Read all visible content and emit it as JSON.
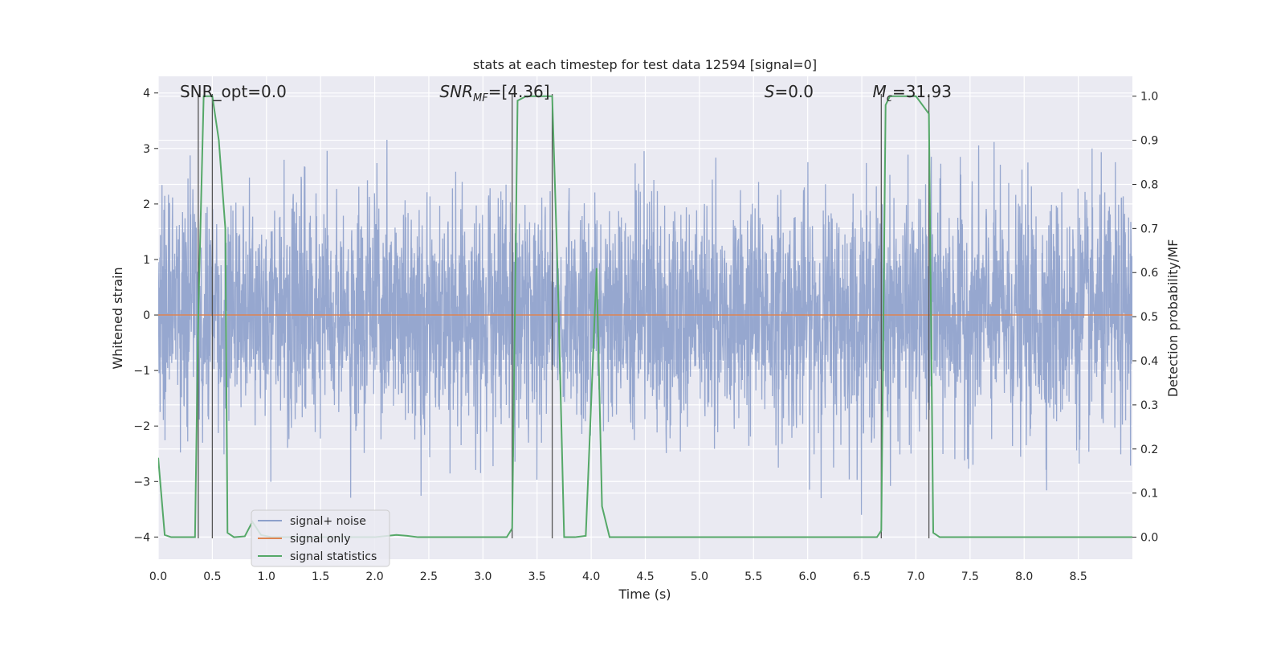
{
  "chart_data": {
    "type": "line",
    "title": "stats at each timestep for test data 12594 [signal=0]",
    "xlabel": "Time (s)",
    "ylabel": "Whitened strain",
    "y2label": "Detection probability/MF",
    "xlim": [
      0.0,
      9.0
    ],
    "ylim": [
      -4.4,
      4.3
    ],
    "y2lim": [
      -0.05,
      1.045
    ],
    "xticks": [
      "0.0",
      "0.5",
      "1.0",
      "1.5",
      "2.0",
      "2.5",
      "3.0",
      "3.5",
      "4.0",
      "4.5",
      "5.0",
      "5.5",
      "6.0",
      "6.5",
      "7.0",
      "7.5",
      "8.0",
      "8.5"
    ],
    "yticks": [
      "4",
      "3",
      "2",
      "1",
      "0",
      "−1",
      "−2",
      "−3",
      "−4"
    ],
    "y2ticks": [
      "1.0",
      "0.9",
      "0.8",
      "0.7",
      "0.6",
      "0.5",
      "0.4",
      "0.3",
      "0.2",
      "0.1",
      "0.0"
    ],
    "grid": true,
    "background": "#eaeaf2",
    "annotations": [
      {
        "text": "SNR_opt=0.0",
        "x": 0.2
      },
      {
        "text": "SNR",
        "sub": "MF",
        "suffix": "=[4.36]",
        "x": 2.6,
        "italic": true
      },
      {
        "text": "S",
        "suffix": "=0.0",
        "x": 5.6,
        "italic": true
      },
      {
        "text": "M",
        "sub": "c",
        "suffix": "=31.93",
        "x": 6.6,
        "italic": true
      }
    ],
    "vertical_lines_x": [
      0.37,
      0.5,
      3.27,
      3.64,
      6.68,
      7.12
    ],
    "series": [
      {
        "name": "signal+ noise",
        "color": "#8da0cb",
        "kind": "noise",
        "sigma": 1.0,
        "axis": "left"
      },
      {
        "name": "signal only",
        "color": "#dd8452",
        "x": [
          0.0,
          9.0
        ],
        "values": [
          0.0,
          0.0
        ],
        "axis": "left"
      },
      {
        "name": "signal statistics",
        "color": "#55a868",
        "axis": "right",
        "x": [
          0.0,
          0.06,
          0.12,
          0.3,
          0.34,
          0.37,
          0.42,
          0.5,
          0.56,
          0.62,
          0.64,
          0.7,
          0.8,
          0.87,
          0.95,
          1.05,
          2.0,
          2.2,
          2.3,
          2.4,
          3.22,
          3.27,
          3.32,
          3.4,
          3.64,
          3.69,
          3.75,
          3.85,
          3.95,
          4.05,
          4.1,
          4.17,
          4.25,
          6.3,
          6.5,
          6.64,
          6.68,
          6.72,
          6.76,
          7.0,
          7.12,
          7.16,
          7.22,
          7.3,
          9.0
        ],
        "values": [
          0.18,
          0.005,
          0.0,
          0.0,
          0.0,
          0.5,
          1.0,
          1.0,
          0.9,
          0.7,
          0.01,
          0.0,
          0.002,
          0.035,
          0.005,
          0.0,
          0.0,
          0.005,
          0.003,
          0.0,
          0.0,
          0.02,
          0.99,
          1.0,
          1.0,
          0.6,
          0.0,
          0.0,
          0.003,
          0.61,
          0.07,
          0.0,
          0.0,
          0.0,
          0.0,
          0.0,
          0.015,
          0.98,
          1.0,
          1.0,
          0.96,
          0.01,
          0.0,
          0.0,
          0.0
        ]
      }
    ],
    "legend": {
      "position": "lower-left",
      "entries": [
        "signal+ noise",
        "signal only",
        "signal statistics"
      ]
    }
  }
}
